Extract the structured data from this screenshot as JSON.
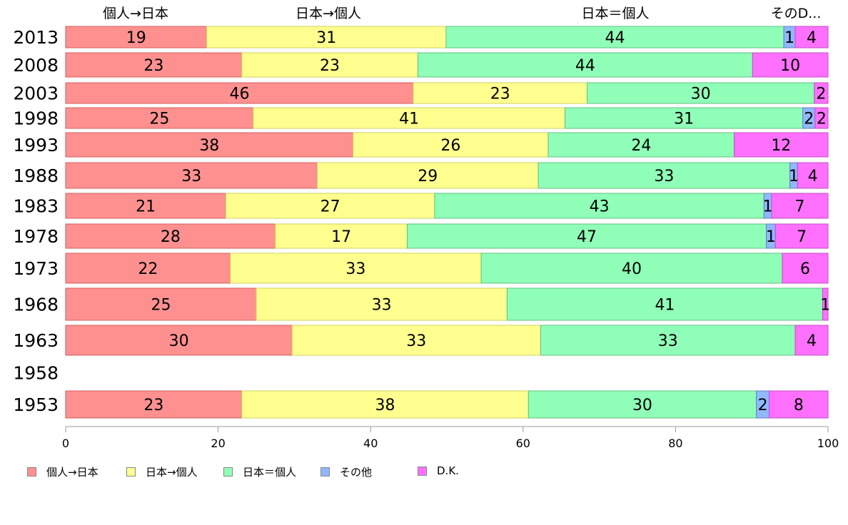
{
  "chart_data": {
    "type": "bar",
    "orientation": "horizontal-stacked-100",
    "categories": [
      "2013",
      "2008",
      "2003",
      "1998",
      "1993",
      "1988",
      "1983",
      "1978",
      "1973",
      "1968",
      "1963",
      "1958",
      "1953"
    ],
    "series": [
      {
        "name": "個人→日本",
        "color": "#ff9090",
        "values": [
          18.5,
          23.1,
          45.6,
          24.6,
          37.7,
          33.0,
          21.0,
          27.5,
          21.6,
          25.0,
          29.7,
          null,
          23.1
        ],
        "labels": [
          "19",
          "23",
          "46",
          "25",
          "38",
          "33",
          "21",
          "28",
          "22",
          "25",
          "30",
          "",
          "23"
        ]
      },
      {
        "name": "日本→個人",
        "color": "#ffff90",
        "values": [
          31.4,
          23.1,
          22.8,
          40.9,
          25.6,
          29.0,
          27.4,
          17.3,
          32.9,
          32.9,
          32.6,
          null,
          37.6
        ],
        "labels": [
          "31",
          "23",
          "23",
          "41",
          "26",
          "29",
          "27",
          "17",
          "33",
          "33",
          "33",
          "",
          "38"
        ]
      },
      {
        "name": "日本＝個人",
        "color": "#90ffb8",
        "values": [
          44.3,
          43.9,
          29.8,
          31.2,
          24.4,
          33.0,
          43.2,
          47.1,
          39.5,
          41.4,
          33.4,
          null,
          29.9
        ],
        "labels": [
          "44",
          "44",
          "30",
          "31",
          "24",
          "33",
          "43",
          "47",
          "40",
          "41",
          "33",
          "",
          "30"
        ]
      },
      {
        "name": "その他",
        "color": "#90b8ff",
        "values": [
          1.5,
          0,
          0,
          1.6,
          0,
          1.0,
          1.0,
          1.2,
          0,
          0,
          0,
          null,
          1.7
        ],
        "labels": [
          "1",
          "",
          "",
          "2",
          "",
          "1",
          "1",
          "1",
          "",
          "",
          "",
          "",
          "2"
        ]
      },
      {
        "name": "D.K.",
        "color": "#ff70ff",
        "values": [
          4.3,
          9.9,
          1.8,
          1.7,
          12.3,
          4.0,
          7.4,
          6.9,
          6.0,
          0.7,
          4.3,
          null,
          7.7
        ],
        "labels": [
          "4",
          "10",
          "2",
          "2",
          "12",
          "4",
          "7",
          "7",
          "6",
          "1",
          "4",
          "",
          "8"
        ]
      }
    ],
    "top_labels": [
      "個人→日本",
      "日本→個人",
      "日本＝個人",
      "そのD..."
    ],
    "xlim": [
      0,
      100
    ],
    "xticks": [
      "0",
      "20",
      "40",
      "60",
      "80",
      "100"
    ],
    "legend_position": "bottom-left"
  }
}
